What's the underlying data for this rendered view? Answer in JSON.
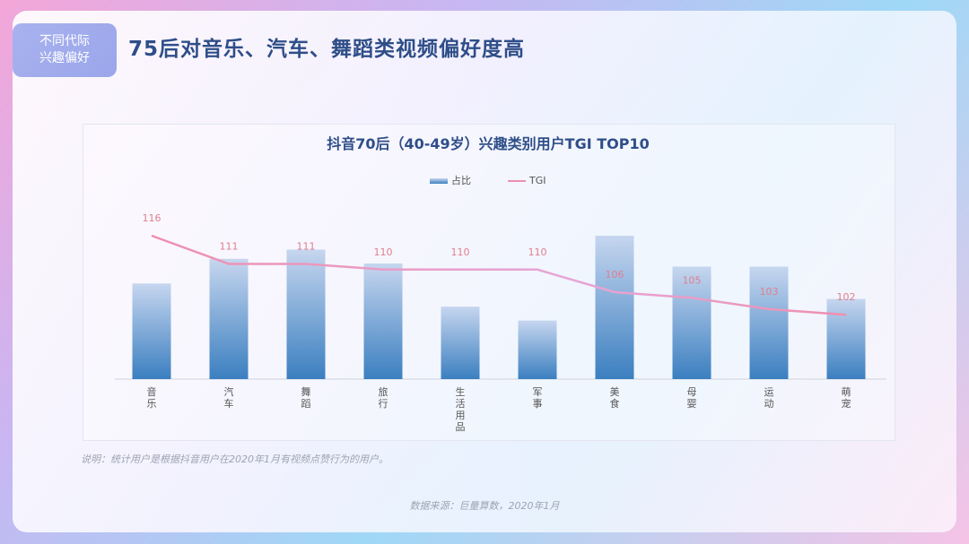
{
  "section_tag": {
    "line1": "不同代际",
    "line2": "兴趣偏好"
  },
  "page_title": "75后对音乐、汽车、舞蹈类视频偏好度高",
  "note": "说明：统计用户是根据抖音用户在2020年1月有视频点赞行为的用户。",
  "source": "数据来源：巨量算数，2020年1月",
  "colors": {
    "bar_top": "#c6d6ef",
    "bar_bottom": "#3b7fc0",
    "line": "#ec8fb0",
    "title": "#2e4e88"
  },
  "chart_data": {
    "type": "bar",
    "title": "抖音70后（40-49岁）兴趣类别用户TGI TOP10",
    "categories": [
      "音乐",
      "汽车",
      "舞蹈",
      "旅行",
      "生活用品",
      "军事",
      "美食",
      "母婴",
      "运动",
      "萌宠"
    ],
    "series": [
      {
        "name": "占比",
        "type": "bar",
        "values": [
          6.2,
          7.8,
          8.4,
          7.5,
          4.7,
          3.8,
          9.3,
          7.3,
          7.3,
          5.2
        ]
      },
      {
        "name": "TGI",
        "type": "line",
        "values": [
          116,
          111,
          111,
          110,
          110,
          110,
          106,
          105,
          103,
          102
        ]
      }
    ],
    "legend": "top-center",
    "grid": false
  }
}
